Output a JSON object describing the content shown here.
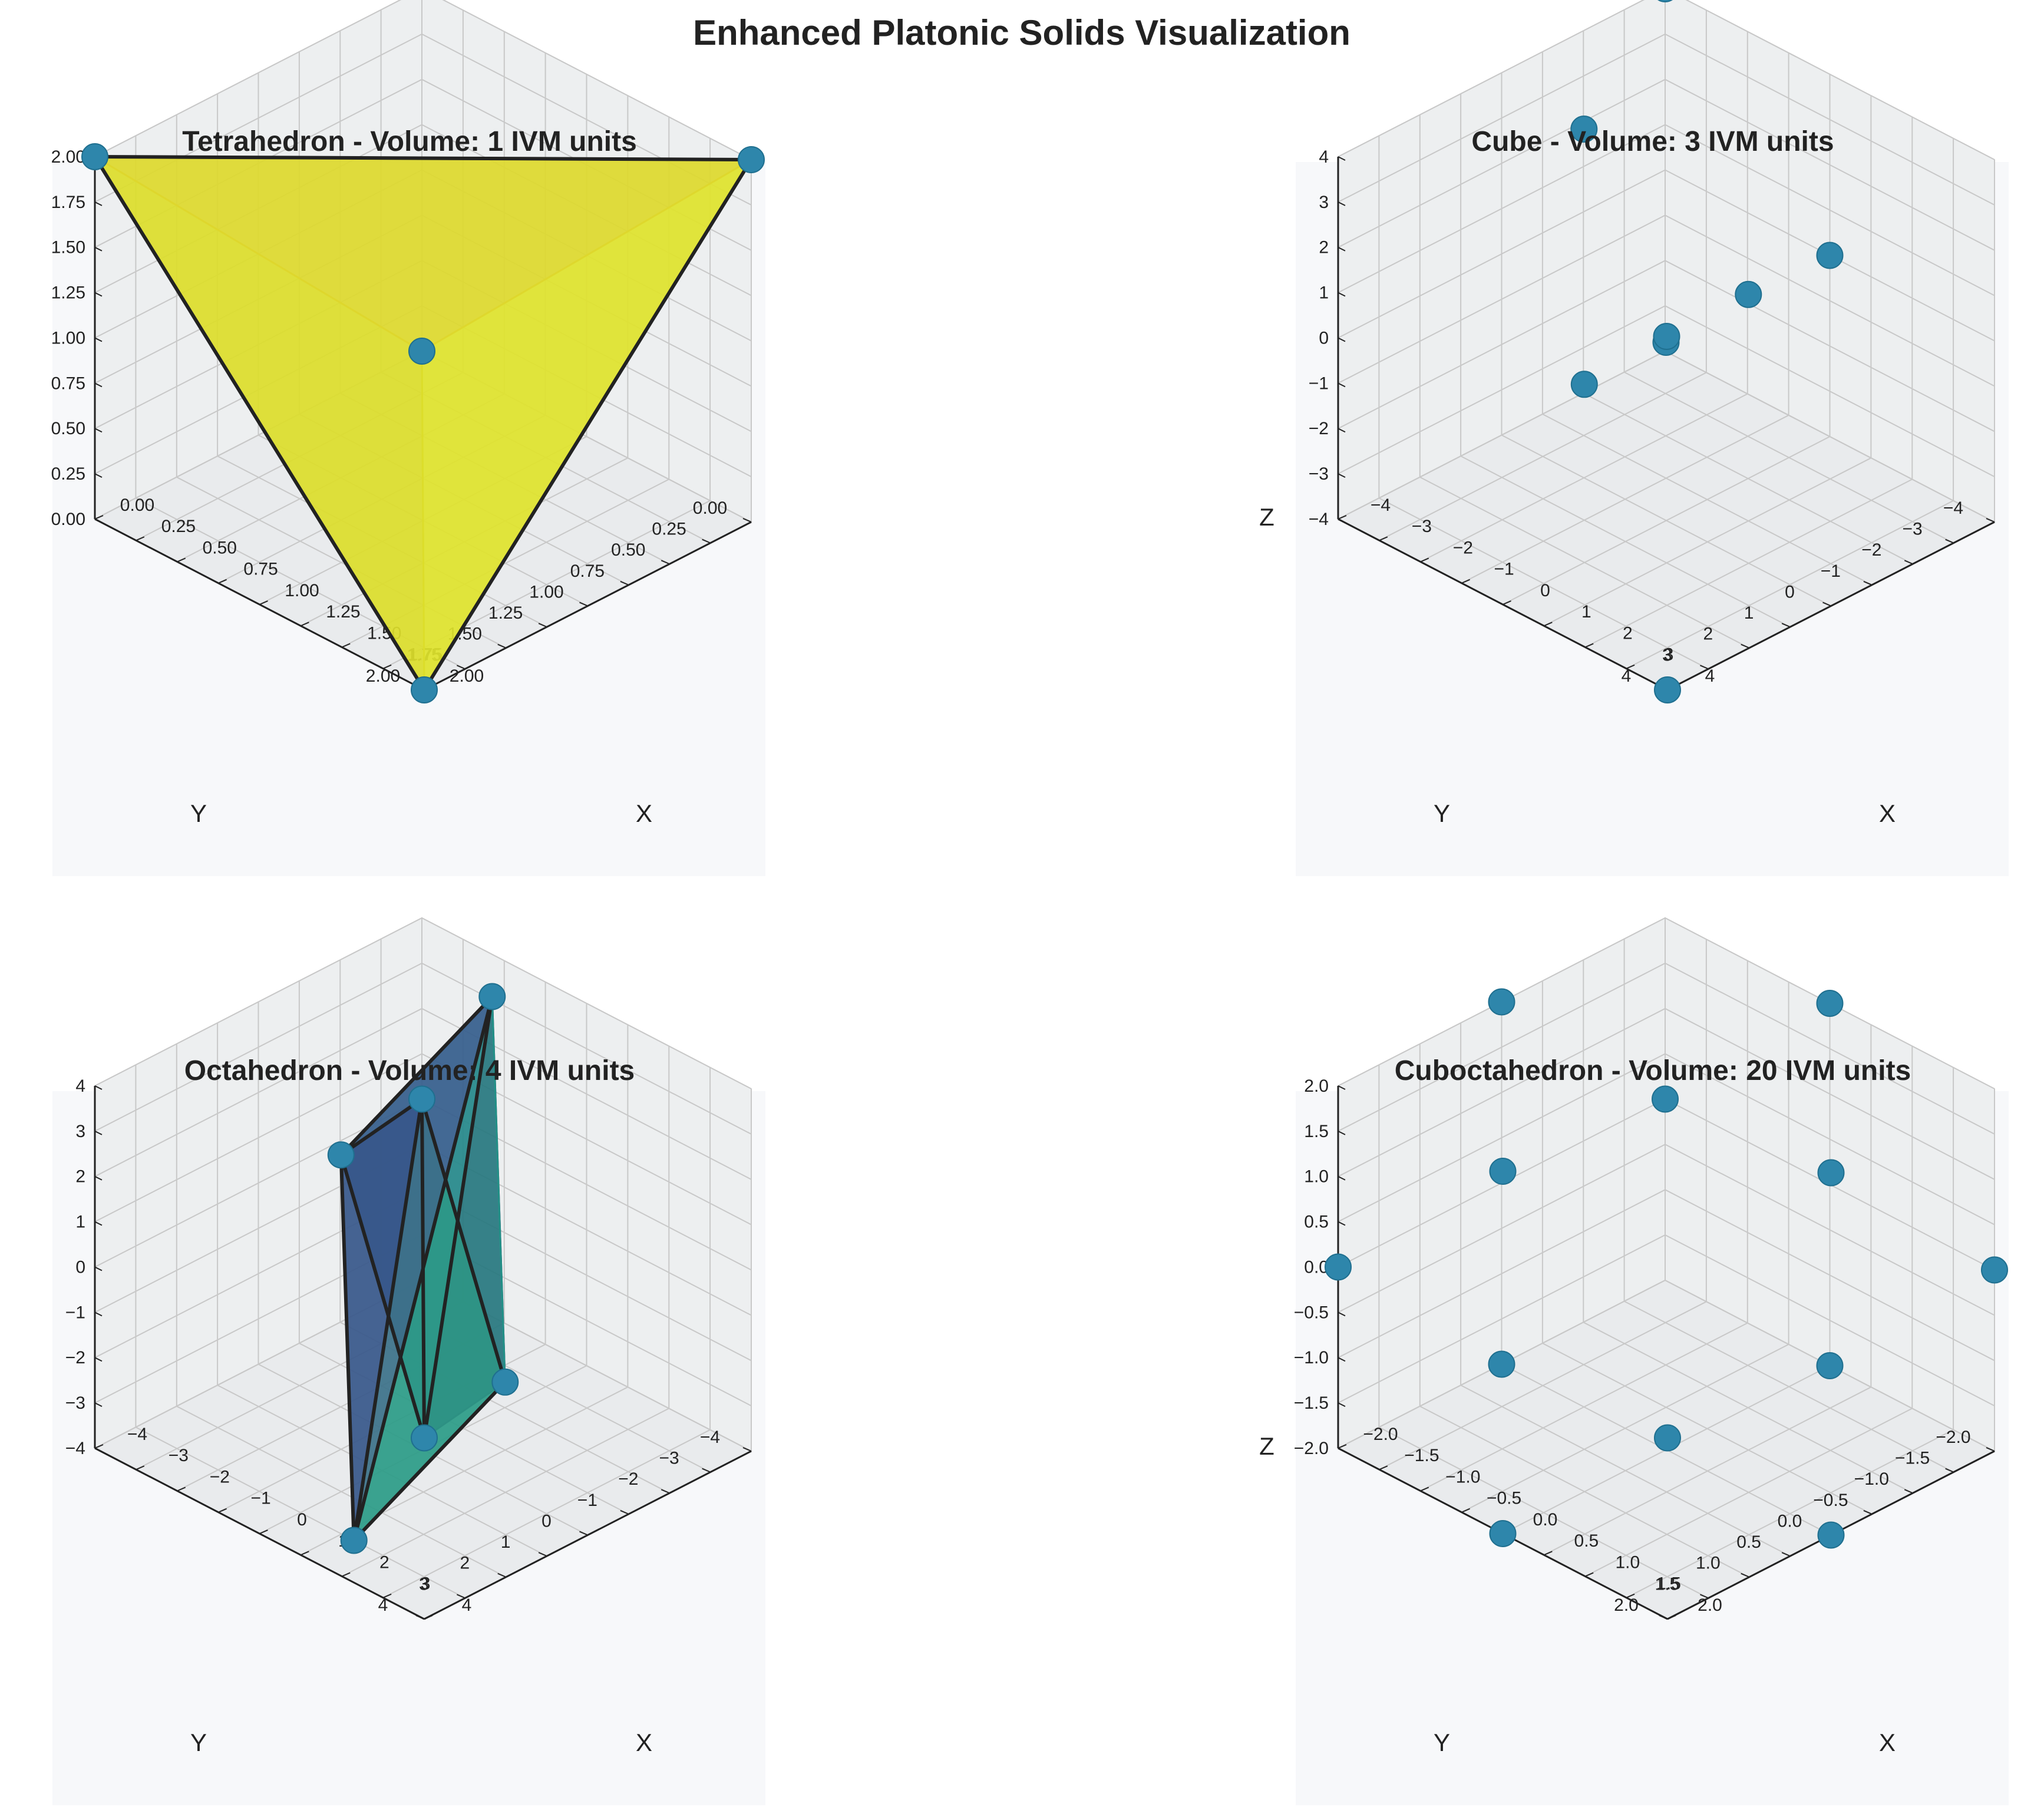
{
  "figure_title": "Enhanced Platonic Solids Visualization",
  "colors": {
    "background": "#ffffff",
    "panel_background": "#f7f8fa",
    "pane": "#edeff0",
    "grid": "#c8c8c8",
    "marker": "#2e86ab",
    "edge": "#222222",
    "tetra_faces": [
      "#dfe32c",
      "#d1ca26",
      "#d9b631"
    ],
    "octa_faces": [
      "#365d8d",
      "#277f8e",
      "#3d4c89",
      "#440154",
      "#46327e",
      "#5ba77a",
      "#33638d",
      "#1f998a"
    ]
  },
  "chart_data": [
    {
      "type": "3d-scatter-polyhedron",
      "title": "Tetrahedron - Volume: 1 IVM units",
      "xlabel": "X",
      "ylabel": "Y",
      "zlabel": "",
      "xlim": [
        0,
        2
      ],
      "ylim": [
        0,
        2
      ],
      "zlim": [
        0,
        2
      ],
      "xticks": [
        "0.00",
        "0.25",
        "0.50",
        "0.75",
        "1.00",
        "1.25",
        "1.50",
        "1.75",
        "2.00"
      ],
      "yticks": [
        "0.00",
        "0.25",
        "0.50",
        "0.75",
        "1.00",
        "1.25",
        "1.50",
        "1.75",
        "2.00"
      ],
      "zticks": [
        "0.00",
        "0.25",
        "0.50",
        "0.75",
        "1.00",
        "1.25",
        "1.50",
        "1.75",
        "2.00"
      ],
      "vertices": [
        [
          0,
          0,
          0
        ],
        [
          2,
          2,
          0
        ],
        [
          2,
          0,
          2
        ],
        [
          0,
          2,
          2
        ]
      ],
      "faces": [
        [
          0,
          1,
          2
        ],
        [
          0,
          1,
          3
        ],
        [
          0,
          2,
          3
        ],
        [
          1,
          2,
          3
        ]
      ],
      "edges": [
        [
          1,
          2
        ],
        [
          1,
          3
        ],
        [
          2,
          3
        ]
      ]
    },
    {
      "type": "3d-scatter",
      "title": "Cube - Volume: 3 IVM units",
      "xlabel": "X",
      "ylabel": "Y",
      "zlabel": "Z",
      "xlim": [
        -4,
        4
      ],
      "ylim": [
        -4,
        4
      ],
      "zlim": [
        -4,
        4
      ],
      "xticks": [
        "−4",
        "−3",
        "−2",
        "−1",
        "0",
        "1",
        "2",
        "3",
        "4"
      ],
      "yticks": [
        "−4",
        "−3",
        "−2",
        "−1",
        "0",
        "1",
        "2",
        "3",
        "4"
      ],
      "zticks": [
        "−4",
        "−3",
        "−2",
        "−1",
        "0",
        "1",
        "2",
        "3",
        "4"
      ],
      "vertices": [
        [
          4,
          4,
          -4
        ],
        [
          -4,
          -4,
          4
        ],
        [
          -2,
          0,
          3.7
        ],
        [
          -1,
          1,
          -1
        ],
        [
          1,
          -1,
          1
        ],
        [
          -1,
          -1,
          -1
        ],
        [
          1,
          1,
          1
        ],
        [
          0,
          -4,
          0
        ]
      ],
      "faces": [],
      "edges": []
    },
    {
      "type": "3d-scatter-polyhedron",
      "title": "Octahedron - Volume: 4 IVM units",
      "xlabel": "X",
      "ylabel": "Y",
      "zlabel": "",
      "xlim": [
        -4,
        4
      ],
      "ylim": [
        -4,
        4
      ],
      "zlim": [
        -4,
        4
      ],
      "xticks": [
        "−4",
        "−3",
        "−2",
        "−1",
        "0",
        "1",
        "2",
        "3",
        "4"
      ],
      "yticks": [
        "−4",
        "−3",
        "−2",
        "−1",
        "0",
        "1",
        "2",
        "3",
        "4"
      ],
      "zticks": [
        "−4",
        "−3",
        "−2",
        "−1",
        "0",
        "1",
        "2",
        "3",
        "4"
      ],
      "vertices": [
        [
          4,
          4,
          0
        ],
        [
          -4,
          -4,
          0
        ],
        [
          -1,
          1,
          2.5
        ],
        [
          1,
          -1,
          -2.5
        ],
        [
          -1.3,
          -3,
          4
        ],
        [
          1.3,
          3,
          -4
        ]
      ],
      "faces": [
        [
          0,
          1,
          2
        ],
        [
          0,
          1,
          3
        ],
        [
          0,
          2,
          4
        ],
        [
          0,
          3,
          4
        ],
        [
          1,
          2,
          5
        ],
        [
          1,
          3,
          5
        ],
        [
          2,
          4,
          5
        ],
        [
          3,
          4,
          5
        ]
      ],
      "edges": [
        [
          0,
          1
        ],
        [
          0,
          2
        ],
        [
          0,
          4
        ],
        [
          1,
          2
        ],
        [
          1,
          3
        ],
        [
          1,
          5
        ],
        [
          2,
          4
        ],
        [
          2,
          5
        ],
        [
          3,
          5
        ],
        [
          4,
          5
        ]
      ]
    },
    {
      "type": "3d-scatter",
      "title": "Cuboctahedron - Volume: 20 IVM units",
      "xlabel": "X",
      "ylabel": "Y",
      "zlabel": "Z",
      "xlim": [
        -2,
        2
      ],
      "ylim": [
        -2,
        2
      ],
      "zlim": [
        -2,
        2
      ],
      "xticks": [
        "−2.0",
        "−1.5",
        "−1.0",
        "−0.5",
        "0.0",
        "0.5",
        "1.0",
        "1.5",
        "2.0"
      ],
      "yticks": [
        "−2.0",
        "−1.5",
        "−1.0",
        "−0.5",
        "0.0",
        "0.5",
        "1.0",
        "1.5",
        "2.0"
      ],
      "zticks": [
        "−2.0",
        "−1.5",
        "−1.0",
        "−0.5",
        "0.0",
        "0.5",
        "1.0",
        "1.5",
        "2.0"
      ],
      "vertices": [
        [
          2,
          2,
          0
        ],
        [
          -2,
          -2,
          0
        ],
        [
          2,
          -2,
          0
        ],
        [
          -2,
          2,
          0
        ],
        [
          2,
          0,
          2
        ],
        [
          -2,
          0,
          2
        ],
        [
          0,
          2,
          2
        ],
        [
          0,
          -2,
          2
        ],
        [
          2,
          0,
          -2
        ],
        [
          -2,
          0,
          -2
        ],
        [
          0,
          2,
          -2
        ],
        [
          0,
          -2,
          -2
        ]
      ],
      "faces": [],
      "edges": []
    }
  ]
}
